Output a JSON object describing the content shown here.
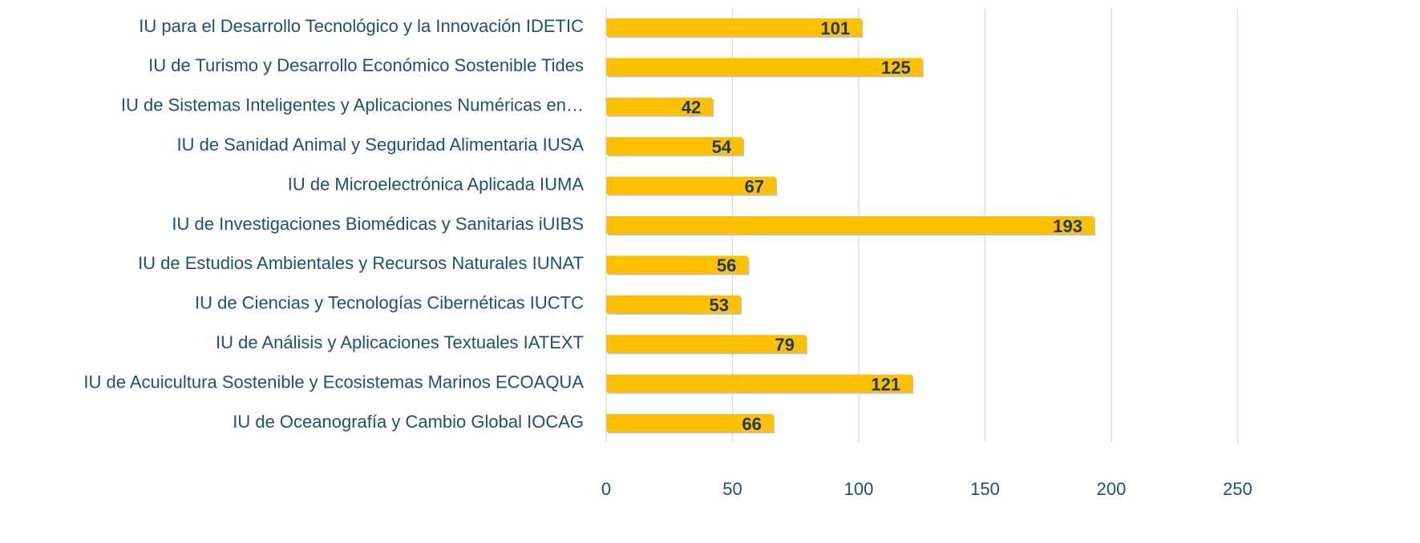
{
  "chart_data": {
    "type": "bar",
    "orientation": "horizontal",
    "categories": [
      "IU para el Desarrollo Tecnológico y la Innovación IDETIC",
      "IU de Turismo y Desarrollo Económico Sostenible Tides",
      "IU de Sistemas Inteligentes y Aplicaciones Numéricas en…",
      "IU de Sanidad Animal y Seguridad Alimentaria IUSA",
      "IU de Microelectrónica Aplicada IUMA",
      "IU de Investigaciones Biomédicas y Sanitarias iUIBS",
      "IU de Estudios Ambientales y Recursos Naturales IUNAT",
      "IU de Ciencias y Tecnologías Cibernéticas IUCTC",
      "IU de Análisis y Aplicaciones Textuales IATEXT",
      "IU de Acuicultura Sostenible y Ecosistemas Marinos ECOAQUA",
      "IU de Oceanografía y Cambio Global IOCAG"
    ],
    "values": [
      101,
      125,
      42,
      54,
      67,
      193,
      56,
      53,
      79,
      121,
      66
    ],
    "color": "#ffc000",
    "xlim": [
      0,
      250
    ],
    "xticks": [
      0,
      50,
      100,
      150,
      200,
      250
    ],
    "grid": true
  }
}
